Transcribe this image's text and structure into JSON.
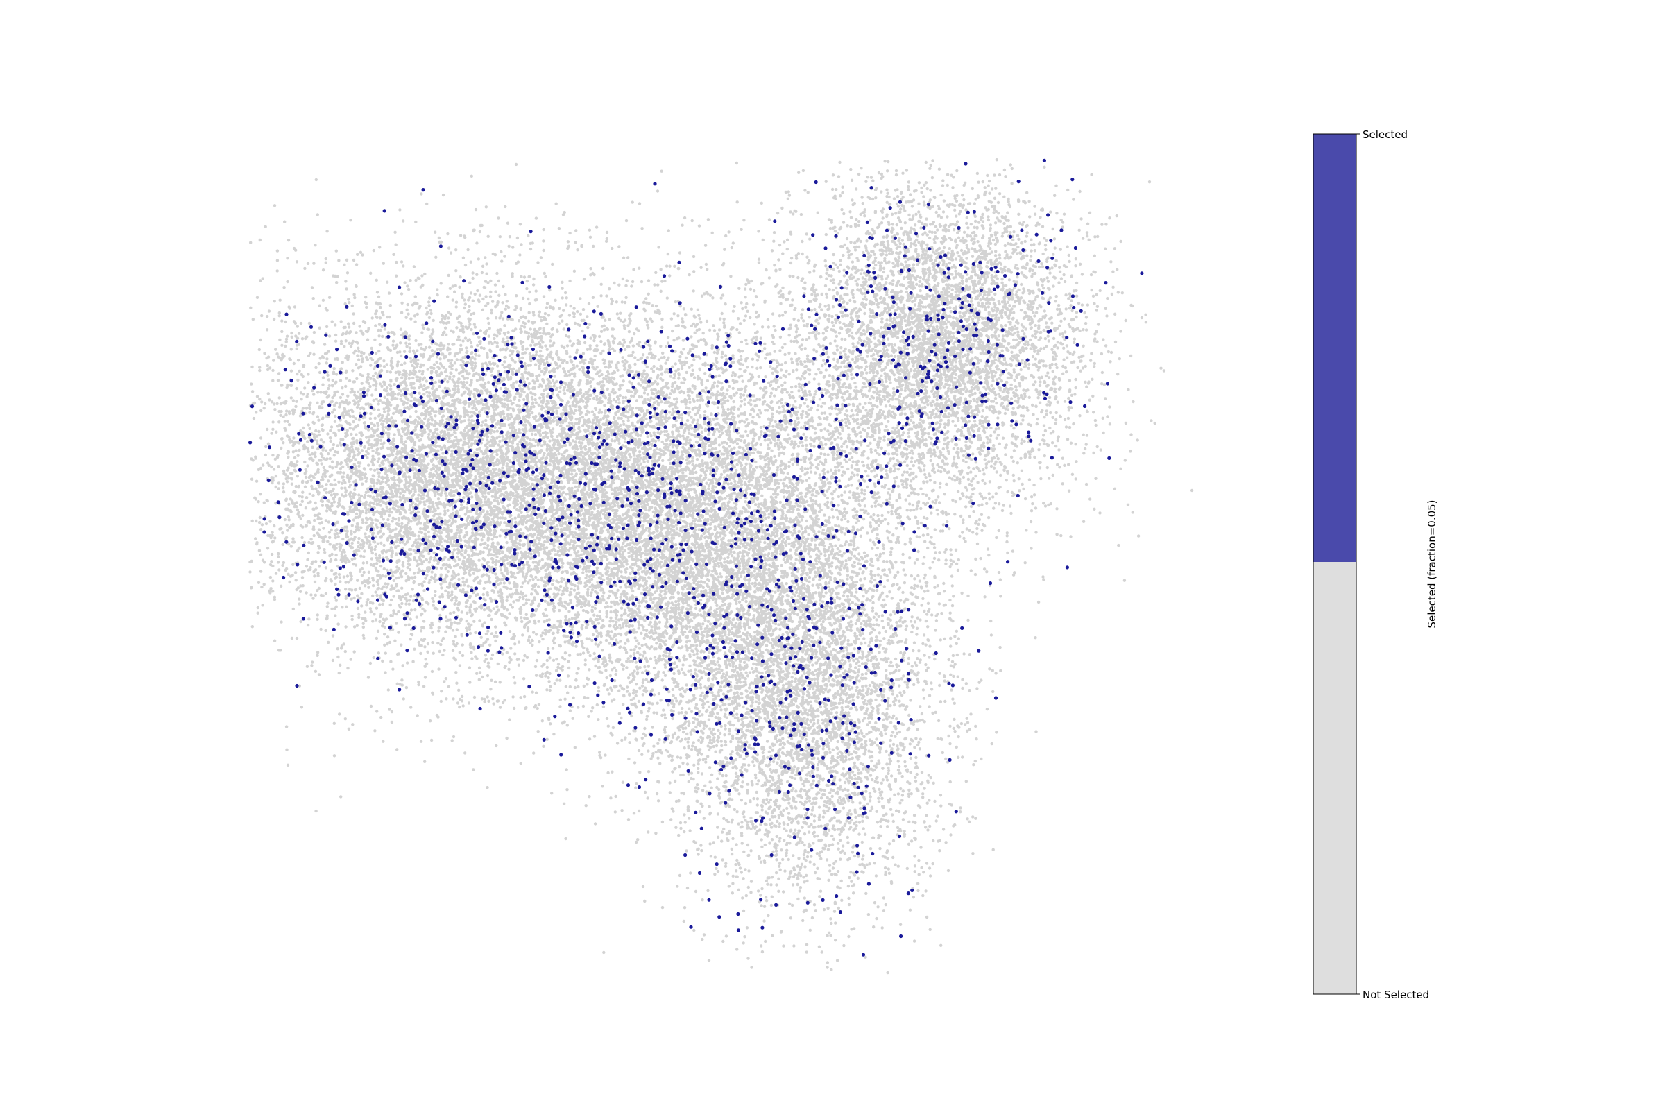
{
  "chart_data": {
    "type": "scatter",
    "title": "",
    "xlabel": "",
    "ylabel": "",
    "axes_visible": false,
    "grid": false,
    "point_count_estimate": 30000,
    "selected_fraction": 0.05,
    "series": [
      {
        "name": "Not Selected",
        "color": "#d3d3d3"
      },
      {
        "name": "Selected",
        "color": "#1a1a9a"
      }
    ],
    "cloud_clusters": [
      {
        "cx": 0.22,
        "cy": 0.38,
        "sx": 0.11,
        "sy": 0.11,
        "weight": 0.32
      },
      {
        "cx": 0.45,
        "cy": 0.44,
        "sx": 0.1,
        "sy": 0.12,
        "weight": 0.3
      },
      {
        "cx": 0.56,
        "cy": 0.66,
        "sx": 0.07,
        "sy": 0.12,
        "weight": 0.18
      },
      {
        "cx": 0.7,
        "cy": 0.22,
        "sx": 0.07,
        "sy": 0.1,
        "weight": 0.2
      }
    ],
    "colorbar": {
      "label": "Selected (fraction=0.05)",
      "tick_top": "Selected",
      "tick_bottom": "Not Selected",
      "top_color": "#4a4aab",
      "bottom_color": "#dedede",
      "split_fraction": 0.5
    }
  }
}
